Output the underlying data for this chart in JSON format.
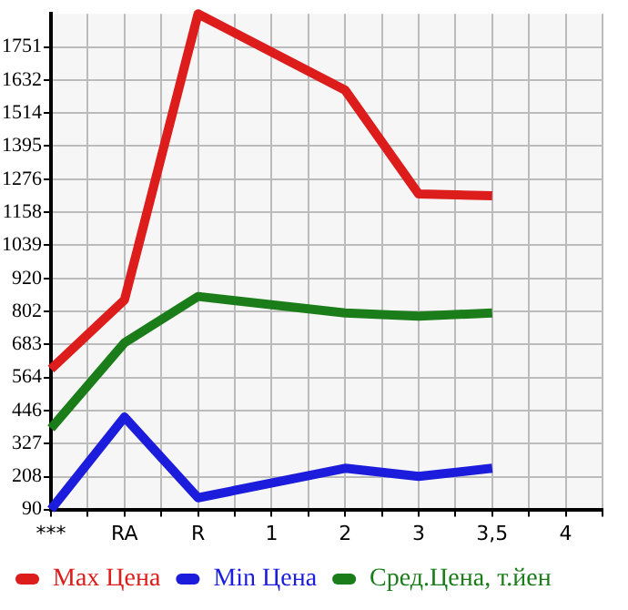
{
  "chart_data": {
    "type": "line",
    "categories": [
      "***",
      "RA",
      "R",
      "1",
      "2",
      "3",
      "3,5",
      "4"
    ],
    "series": [
      {
        "name": "Max Цена",
        "color": "#dd1c1c",
        "values": [
          594,
          843,
          1870,
          null,
          1596,
          1223,
          1217,
          null
        ]
      },
      {
        "name": "Min Цена",
        "color": "#1c1cdd",
        "values": [
          90,
          422,
          132,
          null,
          238,
          209,
          238,
          null
        ]
      },
      {
        "name": "Сред.Цена, т.йен",
        "color": "#1a7d1a",
        "values": [
          381,
          689,
          855,
          null,
          796,
          784,
          796,
          null
        ]
      }
    ],
    "ylim": [
      90,
      1870
    ],
    "yticks": [
      90,
      208,
      327,
      446,
      564,
      683,
      802,
      920,
      1039,
      1158,
      1276,
      1395,
      1514,
      1632,
      1751
    ],
    "grid": true,
    "legend": "bottom",
    "marker": "none",
    "line_style": "solid"
  }
}
